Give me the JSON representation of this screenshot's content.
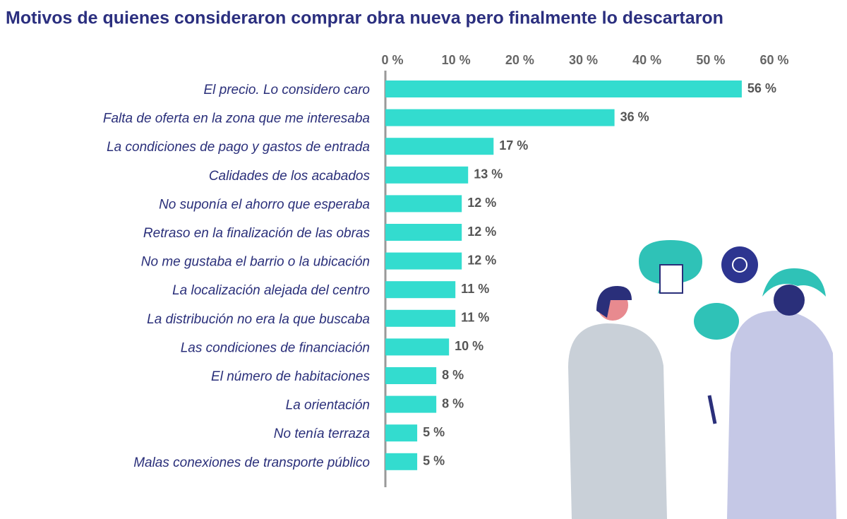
{
  "chart_data": {
    "type": "bar",
    "orientation": "horizontal",
    "title": "Motivos de quienes consideraron comprar obra nueva pero finalmente lo descartaron",
    "categories": [
      "El precio. Lo considero caro",
      "Falta de oferta en la zona que me interesaba",
      "La condiciones de pago y gastos de entrada",
      "Calidades de los acabados",
      "No suponía el ahorro que esperaba",
      "Retraso en la finalización de las obras",
      "No me gustaba el barrio o la ubicación",
      "La localización alejada del centro",
      "La distribución no era la que buscaba",
      "Las condiciones de financiación",
      "El número de habitaciones",
      "La orientación",
      "No tenía terraza",
      "Malas conexiones de transporte público"
    ],
    "values": [
      56,
      36,
      17,
      13,
      12,
      12,
      12,
      11,
      11,
      10,
      8,
      8,
      5,
      5
    ],
    "value_labels": [
      "56 %",
      "36 %",
      "17 %",
      "13 %",
      "12 %",
      "12 %",
      "12 %",
      "11 %",
      "11 %",
      "10 %",
      "8 %",
      "8 %",
      "5 %",
      "5 %"
    ],
    "color": "#33dccf",
    "xlim": [
      0,
      60
    ],
    "xticks": [
      {
        "value": 0,
        "label": "0 %"
      },
      {
        "value": 10,
        "label": "10 %"
      },
      {
        "value": 20,
        "label": "20 %"
      },
      {
        "value": 30,
        "label": "30 %"
      },
      {
        "value": 40,
        "label": "40 %"
      },
      {
        "value": 50,
        "label": "50 %"
      },
      {
        "value": 60,
        "label": "60 %"
      }
    ]
  }
}
